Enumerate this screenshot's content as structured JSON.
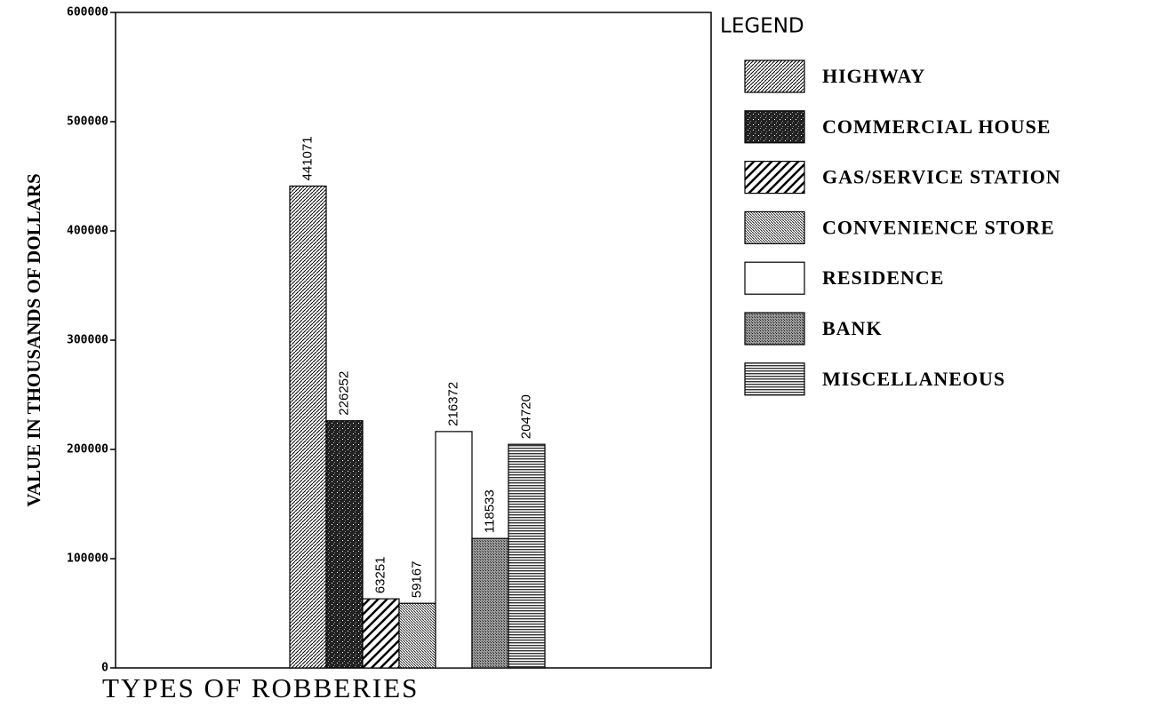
{
  "chart_data": {
    "type": "bar",
    "y_label": "VALUE IN THOUSANDS OF DOLLARS",
    "x_label": "TYPES OF ROBBERIES",
    "legend_title": "LEGEND",
    "series": [
      {
        "name": "HIGHWAY",
        "pattern": "diagonal",
        "values": [
          441071
        ]
      },
      {
        "name": "COMMERCIAL HOUSE",
        "pattern": "speckle",
        "values": [
          226252
        ]
      },
      {
        "name": "GAS/SERVICE STATION",
        "pattern": "wide-diagonal",
        "values": [
          63251
        ]
      },
      {
        "name": "CONVENIENCE STORE",
        "pattern": "fine-diagonal",
        "values": [
          59167
        ]
      },
      {
        "name": "RESIDENCE",
        "pattern": "none",
        "values": [
          216372
        ]
      },
      {
        "name": "BANK",
        "pattern": "dots",
        "values": [
          118533
        ]
      },
      {
        "name": "MISCELLANEOUS",
        "pattern": "horizontal",
        "values": [
          204720
        ]
      }
    ],
    "ylim": [
      0,
      600000
    ],
    "yticks": [
      0,
      100000,
      200000,
      300000,
      400000,
      500000,
      600000
    ]
  }
}
